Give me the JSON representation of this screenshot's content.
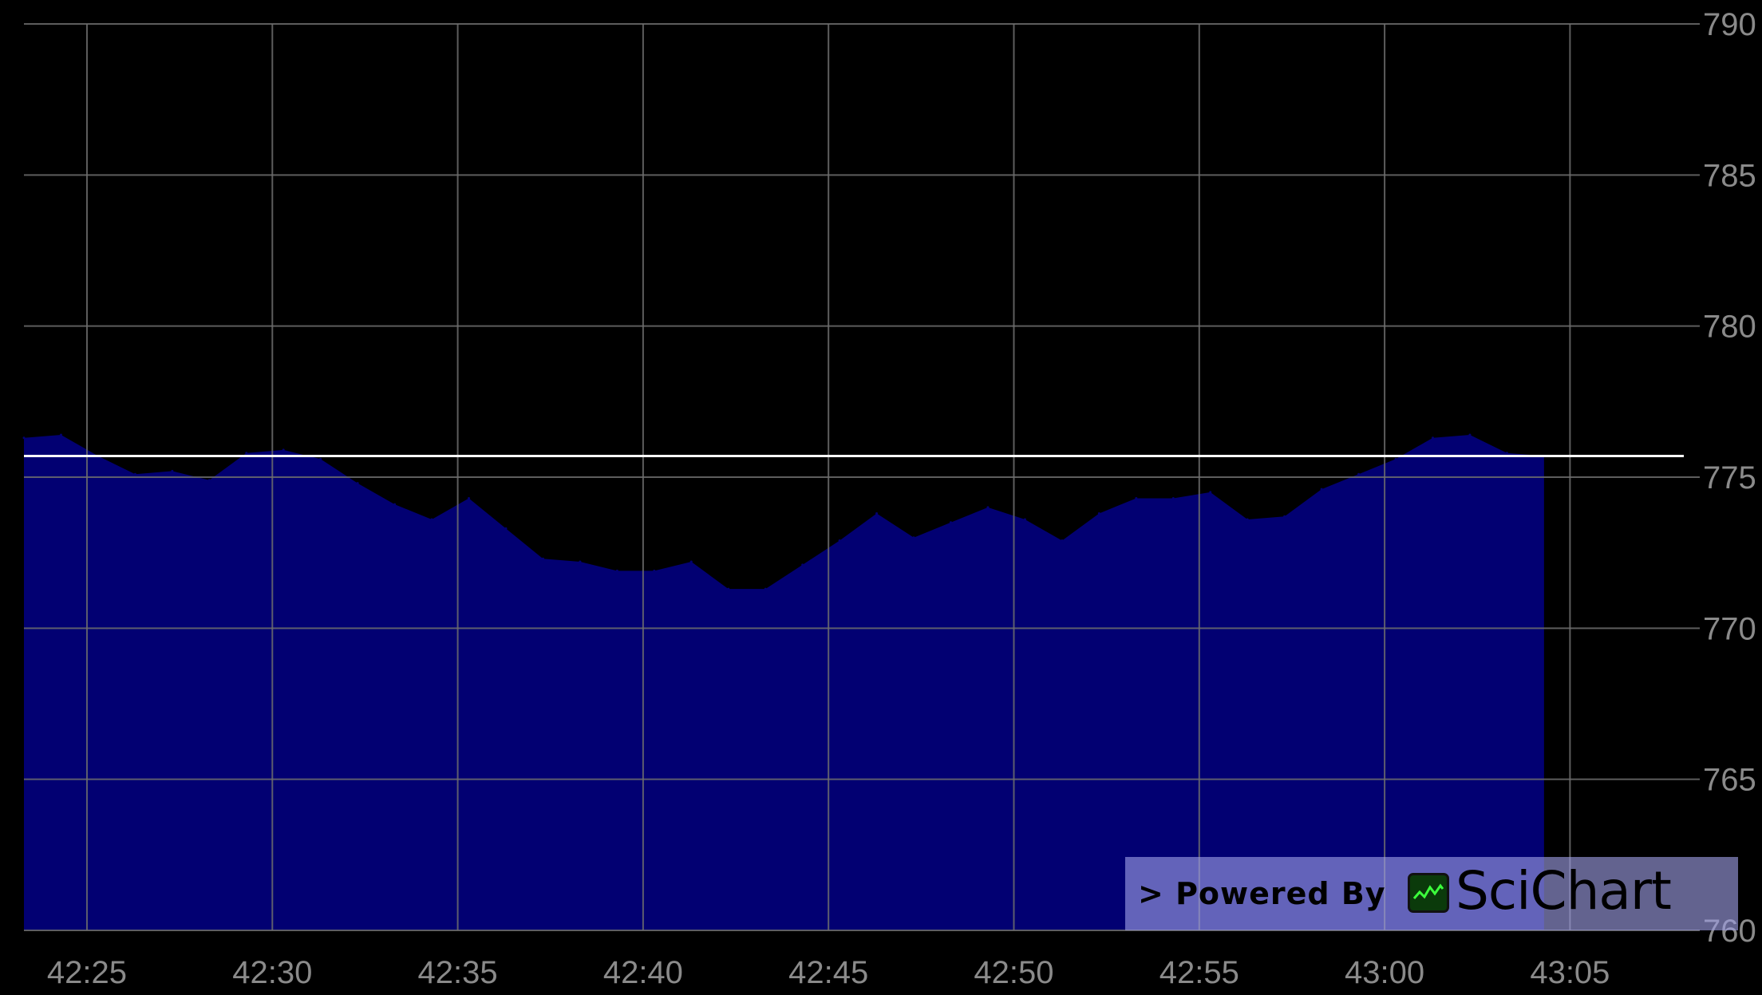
{
  "chart_data": {
    "type": "area",
    "x_ticks": [
      "42:25",
      "42:30",
      "42:35",
      "42:40",
      "42:45",
      "42:50",
      "42:55",
      "43:00",
      "43:05"
    ],
    "y_ticks": [
      "790",
      "785",
      "780",
      "775",
      "770",
      "765",
      "760"
    ],
    "ylim": [
      760,
      790
    ],
    "xlim_seconds": [
      2543.3,
      2588.5
    ],
    "series": [
      {
        "x": [
          2543.3,
          2544.3,
          2545.3,
          2546.3,
          2547.3,
          2548.3,
          2549.3,
          2550.3,
          2551.3,
          2552.3,
          2553.3,
          2554.3,
          2555.3,
          2556.3,
          2557.3,
          2558.3,
          2559.3,
          2560.3,
          2561.3,
          2562.3,
          2563.3,
          2564.3,
          2565.3,
          2566.3,
          2567.3,
          2568.3,
          2569.3,
          2570.3,
          2571.3,
          2572.3,
          2573.3,
          2574.3,
          2575.3,
          2576.3,
          2577.3,
          2578.3,
          2579.3,
          2580.3,
          2581.3,
          2582.3,
          2583.3,
          2584.3
        ],
        "values": [
          776.3,
          776.4,
          775.7,
          775.1,
          775.2,
          774.9,
          775.8,
          775.9,
          775.6,
          774.8,
          774.1,
          773.6,
          774.3,
          773.3,
          772.3,
          772.2,
          771.9,
          771.9,
          772.2,
          771.3,
          771.3,
          772.1,
          772.9,
          773.8,
          773.0,
          773.5,
          774.0,
          773.6,
          772.9,
          773.8,
          774.3,
          774.3,
          774.5,
          773.6,
          773.7,
          774.6,
          775.1,
          775.6,
          776.3,
          776.4,
          775.8,
          775.7
        ],
        "color": "#020072"
      }
    ],
    "horizontal_line": {
      "value": 775.7,
      "color": "#ffffff"
    },
    "colors": {
      "background": "#000000",
      "grid": "#6e6e6e",
      "tick_label": "#8a8a8a"
    },
    "grid": true
  },
  "watermark": {
    "text": "> Powered By",
    "brand": "SciChart"
  }
}
